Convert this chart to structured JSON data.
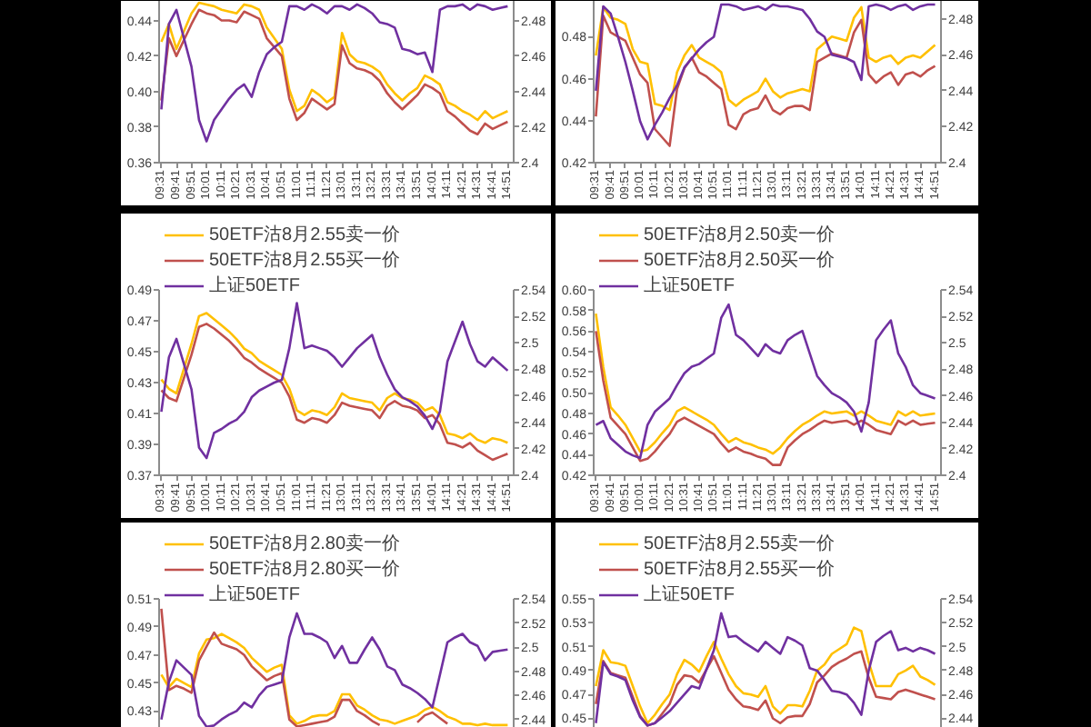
{
  "chart_data": [
    {
      "type": "line",
      "categories": [
        "09:31",
        null,
        "09:41",
        null,
        "09:51",
        null,
        "10:01",
        null,
        "10:11",
        null,
        "10:21",
        null,
        "10:31",
        null,
        "10:41",
        null,
        "10:51",
        null,
        "11:01",
        null,
        "11:11",
        null,
        "11:21",
        null,
        "13:01",
        null,
        "13:11",
        null,
        "13:21",
        null,
        "13:31",
        null,
        "13:41",
        null,
        "13:51",
        null,
        "14:01",
        null,
        "14:11",
        null,
        "14:21",
        null,
        "14:31",
        null,
        "14:41",
        null,
        "14:51"
      ],
      "ylim": [
        0.36,
        0.451
      ],
      "yticks": [
        0.36,
        0.38,
        {
          "value": 0.4,
          "label": "0.40"
        },
        0.42,
        0.44
      ],
      "y2lim": [
        2.4,
        2.491
      ],
      "y2ticks": [
        2.4,
        2.42,
        2.44,
        2.46,
        2.48
      ],
      "series": [
        {
          "color": "#ffc000",
          "values": [
            0.428,
            0.438,
            0.424,
            0.434,
            0.444,
            0.45,
            0.449,
            0.448,
            0.446,
            0.445,
            0.444,
            0.449,
            0.448,
            0.446,
            0.436,
            0.43,
            0.424,
            0.401,
            0.389,
            0.392,
            0.401,
            0.398,
            0.394,
            0.397,
            0.433,
            0.421,
            0.417,
            0.416,
            0.414,
            0.411,
            0.404,
            0.399,
            0.395,
            0.399,
            0.402,
            0.409,
            0.407,
            0.404,
            0.394,
            0.392,
            0.389,
            0.387,
            0.384,
            0.389,
            0.385,
            0.387,
            0.389
          ]
        },
        {
          "color": "#c0504d",
          "values": [
            0.395,
            0.43,
            0.42,
            0.429,
            0.438,
            0.446,
            0.444,
            0.443,
            0.44,
            0.44,
            0.439,
            0.445,
            0.443,
            0.441,
            0.43,
            0.425,
            0.42,
            0.396,
            0.384,
            0.388,
            0.396,
            0.393,
            0.39,
            0.393,
            0.426,
            0.416,
            0.413,
            0.412,
            0.41,
            0.406,
            0.399,
            0.394,
            0.39,
            0.394,
            0.398,
            0.404,
            0.402,
            0.399,
            0.389,
            0.386,
            0.382,
            0.378,
            0.376,
            0.382,
            0.379,
            0.381,
            0.383
          ]
        },
        {
          "color": "#7030a0",
          "axis": "y2",
          "values": [
            2.43,
            2.478,
            2.486,
            2.47,
            2.454,
            2.424,
            2.412,
            2.424,
            2.43,
            2.436,
            2.441,
            2.444,
            2.437,
            2.451,
            2.461,
            2.465,
            2.468,
            2.488,
            2.488,
            2.486,
            2.489,
            2.487,
            2.484,
            2.488,
            2.488,
            2.486,
            2.489,
            2.487,
            2.484,
            2.479,
            2.478,
            2.476,
            2.464,
            2.463,
            2.461,
            2.462,
            2.451,
            2.486,
            2.488,
            2.488,
            2.489,
            2.486,
            2.489,
            2.488,
            2.486,
            2.487,
            2.488
          ]
        }
      ]
    },
    {
      "type": "line",
      "categories": [
        "09:31",
        null,
        "09:41",
        null,
        "09:51",
        null,
        "10:01",
        null,
        "10:11",
        null,
        "10:21",
        null,
        "10:31",
        null,
        "10:41",
        null,
        "10:51",
        null,
        "11:01",
        null,
        "11:11",
        null,
        "11:21",
        null,
        "13:01",
        null,
        "13:11",
        null,
        "13:21",
        null,
        "13:31",
        null,
        "13:41",
        null,
        "13:51",
        null,
        "14:01",
        null,
        "14:11",
        null,
        "14:21",
        null,
        "14:31",
        null,
        "14:41",
        null,
        "14:51"
      ],
      "ylim": [
        0.42,
        0.497
      ],
      "yticks": [
        0.42,
        0.44,
        0.46,
        0.48
      ],
      "y2lim": [
        2.4,
        2.49
      ],
      "y2ticks": [
        2.4,
        2.42,
        2.44,
        2.46,
        2.48
      ],
      "series": [
        {
          "color": "#ffc000",
          "values": [
            0.471,
            0.494,
            0.489,
            0.488,
            0.486,
            0.474,
            0.468,
            0.467,
            0.448,
            0.447,
            0.445,
            0.463,
            0.471,
            0.476,
            0.47,
            0.468,
            0.466,
            0.463,
            0.45,
            0.447,
            0.45,
            0.452,
            0.454,
            0.46,
            0.454,
            0.451,
            0.453,
            0.454,
            0.455,
            0.454,
            0.474,
            0.477,
            0.48,
            0.479,
            0.478,
            0.489,
            0.494,
            0.47,
            0.468,
            0.47,
            0.471,
            0.467,
            0.47,
            0.471,
            0.47,
            0.473,
            0.476
          ]
        },
        {
          "color": "#c0504d",
          "values": [
            0.442,
            0.49,
            0.482,
            0.48,
            0.478,
            0.47,
            0.462,
            0.458,
            0.436,
            0.432,
            0.428,
            0.455,
            0.465,
            0.47,
            0.463,
            0.461,
            0.458,
            0.455,
            0.438,
            0.436,
            0.443,
            0.445,
            0.446,
            0.452,
            0.445,
            0.443,
            0.446,
            0.447,
            0.447,
            0.445,
            0.468,
            0.47,
            0.472,
            0.471,
            0.47,
            0.482,
            0.488,
            0.462,
            0.458,
            0.461,
            0.463,
            0.457,
            0.462,
            0.463,
            0.461,
            0.464,
            0.466
          ]
        },
        {
          "color": "#7030a0",
          "axis": "y2",
          "values": [
            2.44,
            2.487,
            2.483,
            2.47,
            2.456,
            2.44,
            2.423,
            2.413,
            2.421,
            2.428,
            2.436,
            2.443,
            2.453,
            2.458,
            2.463,
            2.467,
            2.47,
            2.488,
            2.488,
            2.487,
            2.485,
            2.486,
            2.487,
            2.485,
            2.488,
            2.487,
            2.487,
            2.486,
            2.485,
            2.48,
            2.473,
            2.47,
            2.46,
            2.459,
            2.458,
            2.456,
            2.446,
            2.487,
            2.488,
            2.487,
            2.485,
            2.487,
            2.488,
            2.485,
            2.487,
            2.488,
            2.488
          ]
        }
      ]
    },
    {
      "type": "line",
      "legend": "top left",
      "categories": [
        "09:31",
        null,
        "09:41",
        null,
        "09:51",
        null,
        "10:01",
        null,
        "10:11",
        null,
        "10:21",
        null,
        "10:31",
        null,
        "10:41",
        null,
        "10:51",
        null,
        "11:01",
        null,
        "11:11",
        null,
        "11:21",
        null,
        "13:01",
        null,
        "13:11",
        null,
        "13:21",
        null,
        "13:31",
        null,
        "13:41",
        null,
        "13:51",
        null,
        "14:01",
        null,
        "14:11",
        null,
        "14:21",
        null,
        "14:31",
        null,
        "14:41",
        null,
        "14:51"
      ],
      "ylim": [
        0.37,
        0.49
      ],
      "yticks": [
        0.37,
        0.39,
        0.41,
        0.43,
        0.45,
        0.47,
        0.49
      ],
      "y2lim": [
        2.4,
        2.54
      ],
      "y2ticks": [
        2.4,
        2.42,
        2.44,
        2.46,
        2.48,
        2.5,
        2.52,
        2.54
      ],
      "series": [
        {
          "name": "50ETF沽8月2.55卖一价",
          "color": "#ffc000",
          "values": [
            0.432,
            0.426,
            0.423,
            0.439,
            0.455,
            0.473,
            0.475,
            0.471,
            0.467,
            0.463,
            0.458,
            0.452,
            0.449,
            0.444,
            0.441,
            0.438,
            0.435,
            0.426,
            0.412,
            0.409,
            0.412,
            0.411,
            0.409,
            0.414,
            0.423,
            0.42,
            0.419,
            0.418,
            0.417,
            0.412,
            0.42,
            0.423,
            0.42,
            0.419,
            0.417,
            0.412,
            0.414,
            0.409,
            0.397,
            0.396,
            0.394,
            0.397,
            0.393,
            0.391,
            0.394,
            0.393,
            0.391
          ]
        },
        {
          "name": "50ETF沽8月2.55买一价",
          "color": "#c0504d",
          "values": [
            0.425,
            0.42,
            0.418,
            0.433,
            0.448,
            0.466,
            0.468,
            0.465,
            0.461,
            0.457,
            0.452,
            0.446,
            0.443,
            0.439,
            0.436,
            0.433,
            0.43,
            0.421,
            0.406,
            0.404,
            0.407,
            0.406,
            0.404,
            0.409,
            0.417,
            0.415,
            0.414,
            0.413,
            0.412,
            0.407,
            0.415,
            0.418,
            0.415,
            0.414,
            0.412,
            0.407,
            0.409,
            0.403,
            0.391,
            0.39,
            0.388,
            0.391,
            0.386,
            0.383,
            0.38,
            0.382,
            0.384
          ]
        },
        {
          "name": "上证50ETF",
          "color": "#7030a0",
          "axis": "y2",
          "values": [
            2.448,
            2.489,
            2.503,
            2.484,
            2.465,
            2.421,
            2.413,
            2.432,
            2.435,
            2.439,
            2.442,
            2.448,
            2.459,
            2.464,
            2.467,
            2.47,
            2.472,
            2.496,
            2.53,
            2.496,
            2.498,
            2.496,
            2.494,
            2.489,
            2.482,
            2.489,
            2.496,
            2.501,
            2.506,
            2.489,
            2.476,
            2.465,
            2.459,
            2.456,
            2.452,
            2.445,
            2.435,
            2.448,
            2.486,
            2.501,
            2.516,
            2.499,
            2.486,
            2.482,
            2.489,
            2.484,
            2.479
          ]
        }
      ]
    },
    {
      "type": "line",
      "legend": "top left",
      "categories": [
        "09:31",
        null,
        "09:41",
        null,
        "09:51",
        null,
        "10:01",
        null,
        "10:11",
        null,
        "10:21",
        null,
        "10:31",
        null,
        "10:41",
        null,
        "10:51",
        null,
        "11:01",
        null,
        "11:11",
        null,
        "11:21",
        null,
        "13:01",
        null,
        "13:11",
        null,
        "13:21",
        null,
        "13:31",
        null,
        "13:41",
        null,
        "13:51",
        null,
        "14:01",
        null,
        "14:11",
        null,
        "14:21",
        null,
        "14:31",
        null,
        "14:41",
        null,
        "14:51"
      ],
      "ylim": [
        0.42,
        0.6
      ],
      "yticks": [
        0.42,
        0.44,
        0.46,
        0.48,
        {
          "value": 0.5,
          "label": "0.50"
        },
        0.52,
        0.54,
        0.56,
        0.58,
        {
          "value": 0.6,
          "label": "0.60"
        }
      ],
      "y2lim": [
        2.4,
        2.54
      ],
      "y2ticks": [
        2.4,
        2.42,
        2.44,
        2.46,
        2.48,
        2.5,
        2.52,
        2.54
      ],
      "series": [
        {
          "name": "50ETF沽8月2.50卖一价",
          "color": "#ffc000",
          "values": [
            0.577,
            0.525,
            0.486,
            0.478,
            0.469,
            0.456,
            0.443,
            0.445,
            0.452,
            0.461,
            0.469,
            0.482,
            0.486,
            0.482,
            0.478,
            0.474,
            0.469,
            0.46,
            0.452,
            0.456,
            0.452,
            0.45,
            0.447,
            0.445,
            0.441,
            0.447,
            0.456,
            0.463,
            0.469,
            0.473,
            0.478,
            0.482,
            0.48,
            0.481,
            0.482,
            0.478,
            0.482,
            0.478,
            0.473,
            0.471,
            0.469,
            0.482,
            0.478,
            0.482,
            0.478,
            0.479,
            0.48
          ]
        },
        {
          "name": "50ETF沽8月2.50买一价",
          "color": "#c0504d",
          "values": [
            0.56,
            0.512,
            0.476,
            0.468,
            0.46,
            0.447,
            0.434,
            0.436,
            0.443,
            0.452,
            0.46,
            0.472,
            0.476,
            0.472,
            0.468,
            0.464,
            0.46,
            0.451,
            0.443,
            0.447,
            0.443,
            0.441,
            0.438,
            0.436,
            0.43,
            0.43,
            0.447,
            0.454,
            0.46,
            0.464,
            0.469,
            0.473,
            0.471,
            0.472,
            0.473,
            0.469,
            0.473,
            0.469,
            0.464,
            0.462,
            0.46,
            0.473,
            0.469,
            0.473,
            0.469,
            0.47,
            0.471
          ]
        },
        {
          "name": "上证50ETF",
          "color": "#7030a0",
          "axis": "y2",
          "values": [
            2.438,
            2.441,
            2.428,
            2.423,
            2.418,
            2.415,
            2.413,
            2.438,
            2.448,
            2.453,
            2.458,
            2.468,
            2.477,
            2.482,
            2.484,
            2.488,
            2.492,
            2.519,
            2.529,
            2.506,
            2.502,
            2.496,
            2.49,
            2.499,
            2.494,
            2.492,
            2.502,
            2.506,
            2.509,
            2.492,
            2.475,
            2.468,
            2.462,
            2.459,
            2.455,
            2.448,
            2.433,
            2.455,
            2.502,
            2.51,
            2.517,
            2.492,
            2.482,
            2.468,
            2.462,
            2.46,
            2.458
          ]
        }
      ]
    },
    {
      "type": "line",
      "legend": "top left",
      "tick_labels": "y",
      "categories": [
        null,
        null,
        null,
        null,
        null,
        null,
        null,
        null,
        null,
        null,
        null,
        null,
        null,
        null,
        null,
        null,
        null,
        null,
        null,
        null,
        null,
        null,
        null,
        null,
        null,
        null,
        null,
        null,
        null,
        null,
        null,
        null,
        null,
        null,
        null,
        null,
        null,
        null,
        null,
        null,
        null,
        null,
        null,
        null,
        null,
        null,
        null
      ],
      "ylim": [
        0.418,
        0.51
      ],
      "yticks": [
        0.43,
        0.45,
        0.47,
        0.49,
        0.51
      ],
      "y2lim": [
        2.433,
        2.54
      ],
      "y2ticks": [
        2.44,
        2.46,
        2.48,
        2.5,
        2.52,
        2.54
      ],
      "series": [
        {
          "name": "50ETF沽8月2.80卖一价",
          "color": "#ffc000",
          "values": [
            0.456,
            0.447,
            0.453,
            0.45,
            0.447,
            0.471,
            0.481,
            0.482,
            0.485,
            0.482,
            0.479,
            0.475,
            0.468,
            0.463,
            0.458,
            0.461,
            0.463,
            0.427,
            0.421,
            0.423,
            0.426,
            0.427,
            0.427,
            0.43,
            0.442,
            0.442,
            0.434,
            0.431,
            0.427,
            0.424,
            0.423,
            0.421,
            0.423,
            0.425,
            0.427,
            0.431,
            0.433,
            0.43,
            0.426,
            0.424,
            0.421,
            0.421,
            0.42,
            0.421,
            0.42,
            0.42,
            0.42
          ]
        },
        {
          "name": "50ETF沽8月2.80买一价",
          "color": "#c0504d",
          "values": [
            0.503,
            0.445,
            0.448,
            0.446,
            0.443,
            0.466,
            0.476,
            0.486,
            0.478,
            0.476,
            0.474,
            0.47,
            0.462,
            0.457,
            0.452,
            0.455,
            0.457,
            0.424,
            0.419,
            0.42,
            0.421,
            0.422,
            0.423,
            0.426,
            0.438,
            0.438,
            0.43,
            0.427,
            0.423,
            0.42,
            null,
            null,
            null,
            null,
            0.422,
            0.427,
            0.429,
            0.425,
            0.421,
            null,
            null,
            null,
            null,
            null,
            null,
            null,
            null
          ]
        },
        {
          "name": "上证50ETF",
          "color": "#7030a0",
          "axis": "y2",
          "values": [
            2.44,
            2.471,
            2.489,
            2.483,
            2.477,
            2.443,
            2.434,
            2.435,
            2.44,
            2.444,
            2.447,
            2.454,
            2.45,
            2.46,
            2.467,
            2.469,
            2.471,
            2.508,
            2.528,
            2.511,
            2.511,
            2.508,
            2.504,
            2.491,
            2.501,
            2.487,
            2.487,
            2.498,
            2.508,
            2.498,
            2.484,
            2.481,
            2.469,
            2.466,
            2.462,
            2.457,
            2.45,
            2.477,
            2.504,
            2.508,
            2.511,
            2.504,
            2.501,
            2.489,
            2.496,
            2.497,
            2.498
          ]
        }
      ]
    },
    {
      "type": "line",
      "legend": "top left",
      "tick_labels": "y",
      "categories": [
        null,
        null,
        null,
        null,
        null,
        null,
        null,
        null,
        null,
        null,
        null,
        null,
        null,
        null,
        null,
        null,
        null,
        null,
        null,
        null,
        null,
        null,
        null,
        null,
        null,
        null,
        null,
        null,
        null,
        null,
        null,
        null,
        null,
        null,
        null,
        null,
        null,
        null,
        null,
        null,
        null,
        null,
        null,
        null,
        null,
        null,
        null
      ],
      "ylim": [
        0.442,
        0.55
      ],
      "yticks": [
        0.45,
        0.47,
        0.49,
        0.51,
        0.53,
        0.55
      ],
      "y2lim": [
        2.432,
        2.54
      ],
      "y2ticks": [
        2.44,
        2.46,
        2.48,
        2.5,
        2.52,
        2.54
      ],
      "series": [
        {
          "name": "50ETF沽8月2.55卖一价",
          "color": "#ffc000",
          "values": [
            0.477,
            0.507,
            0.497,
            0.496,
            0.494,
            0.477,
            0.46,
            0.446,
            0.453,
            0.462,
            0.47,
            0.487,
            0.499,
            0.495,
            0.489,
            0.502,
            0.514,
            0.5,
            0.487,
            0.477,
            0.471,
            0.47,
            0.468,
            0.477,
            0.46,
            0.454,
            0.461,
            0.461,
            0.46,
            0.473,
            0.49,
            0.495,
            0.504,
            0.508,
            0.512,
            0.526,
            0.523,
            0.497,
            0.477,
            0.477,
            0.477,
            0.487,
            0.49,
            0.494,
            0.485,
            0.482,
            0.478
          ]
        },
        {
          "name": "50ETF沽8月2.55买一价",
          "color": "#c0504d",
          "values": [
            0.462,
            0.498,
            0.488,
            0.486,
            0.484,
            0.468,
            0.452,
            0.444,
            0.446,
            0.454,
            0.462,
            0.478,
            0.486,
            0.485,
            0.48,
            0.491,
            0.502,
            0.488,
            0.474,
            0.466,
            0.46,
            0.459,
            0.457,
            0.465,
            0.45,
            0.446,
            0.451,
            0.452,
            0.452,
            0.462,
            0.48,
            0.486,
            0.493,
            0.497,
            0.5,
            0.504,
            0.506,
            0.484,
            0.468,
            0.467,
            0.466,
            0.472,
            0.474,
            0.472,
            0.47,
            0.468,
            0.466
          ]
        },
        {
          "name": "上证50ETF",
          "color": "#7030a0",
          "axis": "y2",
          "values": [
            2.436,
            2.487,
            2.477,
            2.475,
            2.472,
            2.455,
            2.441,
            2.434,
            2.436,
            2.441,
            2.446,
            2.453,
            2.46,
            2.467,
            2.465,
            2.481,
            2.497,
            2.528,
            2.508,
            2.509,
            2.504,
            2.5,
            2.496,
            2.504,
            2.499,
            2.494,
            2.508,
            2.505,
            2.501,
            2.482,
            2.48,
            2.472,
            2.463,
            2.462,
            2.46,
            2.453,
            2.443,
            2.48,
            2.504,
            2.509,
            2.513,
            2.497,
            2.499,
            2.496,
            2.499,
            2.497,
            2.494
          ]
        }
      ]
    }
  ]
}
